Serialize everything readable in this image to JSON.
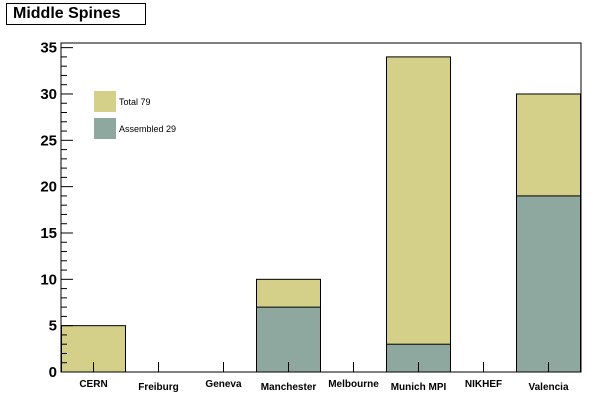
{
  "chart_data": {
    "type": "bar",
    "title": "Middle Spines",
    "categories": [
      "CERN",
      "Freiburg",
      "Geneva",
      "Manchester",
      "Melbourne",
      "Munich MPI",
      "NIKHEF",
      "Valencia"
    ],
    "series": [
      {
        "name": "Total 79",
        "values": [
          5,
          0,
          0,
          10,
          0,
          34,
          0,
          30
        ],
        "color": "#d4d08a"
      },
      {
        "name": "Assembled 29",
        "values": [
          0,
          0,
          0,
          7,
          0,
          3,
          0,
          19
        ],
        "color": "#8ea8a0"
      }
    ],
    "ylim": [
      0,
      35.5
    ],
    "yticks": [
      0,
      5,
      10,
      15,
      20,
      25,
      30,
      35
    ],
    "xlabel": "",
    "ylabel": "",
    "legend_position": "top-left",
    "grid": false,
    "bar_mode": "overlay"
  }
}
